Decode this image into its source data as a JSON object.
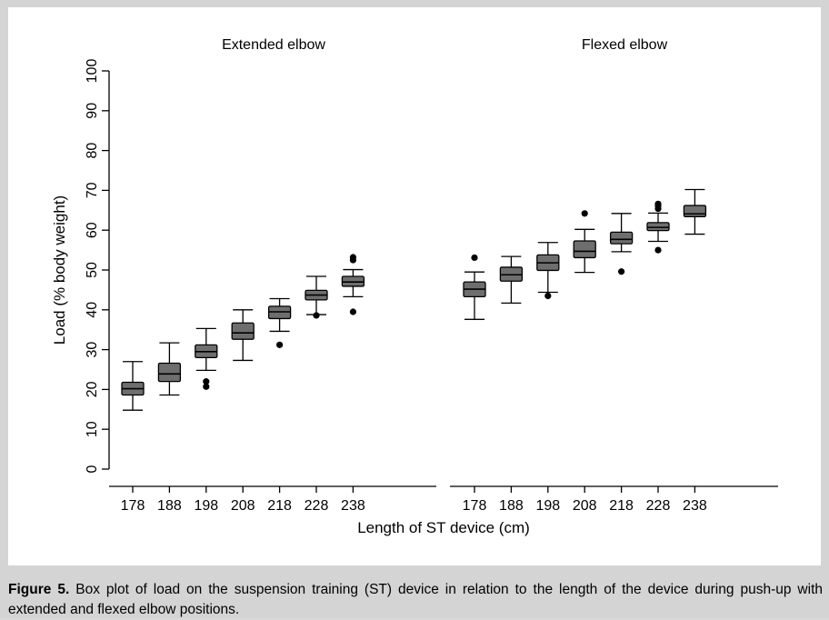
{
  "chart_data": {
    "type": "box",
    "ylabel": "Load (% body weight)",
    "xlabel": "Length of ST device (cm)",
    "ylim": [
      0,
      100
    ],
    "yticks": [
      0,
      10,
      20,
      30,
      40,
      50,
      60,
      70,
      80,
      90,
      100
    ],
    "grid": false,
    "panels": [
      {
        "title": "Extended elbow",
        "categories": [
          "178",
          "188",
          "198",
          "208",
          "218",
          "228",
          "238"
        ],
        "boxes": [
          {
            "whisker_low": 14.8,
            "q1": 18.6,
            "median": 20.2,
            "q3": 21.8,
            "whisker_high": 27.0,
            "outliers": []
          },
          {
            "whisker_low": 18.6,
            "q1": 22.0,
            "median": 23.9,
            "q3": 26.6,
            "whisker_high": 31.7,
            "outliers": []
          },
          {
            "whisker_low": 24.8,
            "q1": 28.0,
            "median": 29.5,
            "q3": 31.2,
            "whisker_high": 35.3,
            "outliers": [
              22.0,
              20.7
            ]
          },
          {
            "whisker_low": 27.3,
            "q1": 32.6,
            "median": 34.2,
            "q3": 36.7,
            "whisker_high": 40.0,
            "outliers": []
          },
          {
            "whisker_low": 34.6,
            "q1": 37.8,
            "median": 39.5,
            "q3": 40.9,
            "whisker_high": 42.8,
            "outliers": [
              31.2
            ]
          },
          {
            "whisker_low": 38.8,
            "q1": 42.5,
            "median": 43.7,
            "q3": 44.9,
            "whisker_high": 48.4,
            "outliers": [
              38.6
            ]
          },
          {
            "whisker_low": 43.3,
            "q1": 45.9,
            "median": 47.0,
            "q3": 48.4,
            "whisker_high": 50.1,
            "outliers": [
              39.5,
              52.5,
              53.2
            ]
          }
        ]
      },
      {
        "title": "Flexed elbow",
        "categories": [
          "178",
          "188",
          "198",
          "208",
          "218",
          "228",
          "238"
        ],
        "boxes": [
          {
            "whisker_low": 37.6,
            "q1": 43.3,
            "median": 45.2,
            "q3": 47.0,
            "whisker_high": 49.5,
            "outliers": [
              53.1
            ]
          },
          {
            "whisker_low": 41.7,
            "q1": 47.2,
            "median": 48.8,
            "q3": 50.7,
            "whisker_high": 53.4,
            "outliers": []
          },
          {
            "whisker_low": 44.4,
            "q1": 49.9,
            "median": 51.8,
            "q3": 53.8,
            "whisker_high": 56.9,
            "outliers": [
              43.5
            ]
          },
          {
            "whisker_low": 49.4,
            "q1": 53.1,
            "median": 54.7,
            "q3": 57.3,
            "whisker_high": 60.2,
            "outliers": [
              64.2
            ]
          },
          {
            "whisker_low": 54.6,
            "q1": 56.6,
            "median": 57.7,
            "q3": 59.5,
            "whisker_high": 64.2,
            "outliers": [
              49.6
            ]
          },
          {
            "whisker_low": 57.2,
            "q1": 59.9,
            "median": 60.7,
            "q3": 61.9,
            "whisker_high": 64.3,
            "outliers": [
              55.0,
              65.4,
              66.1,
              66.6
            ]
          },
          {
            "whisker_low": 59.0,
            "q1": 63.4,
            "median": 64.1,
            "q3": 66.2,
            "whisker_high": 70.2,
            "outliers": []
          }
        ]
      }
    ]
  },
  "caption": {
    "label": "Figure 5.",
    "text": " Box plot of load on the suspension training (ST) device in relation to the length of the device during push-up with extended and flexed elbow positions."
  },
  "colors": {
    "box_fill": "#6e6e6e",
    "frame": "#d4d4d4",
    "panel": "#ffffff"
  }
}
